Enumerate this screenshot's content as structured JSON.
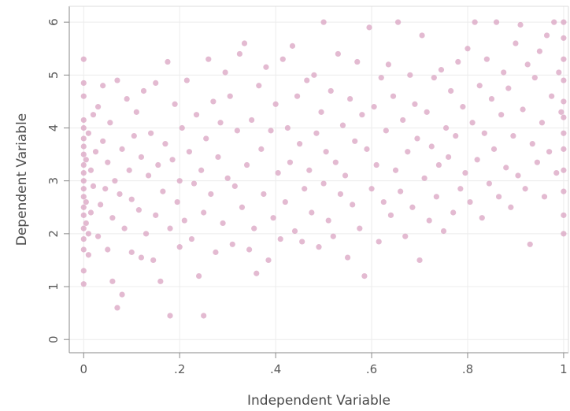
{
  "chart_data": {
    "type": "scatter",
    "title": "",
    "xlabel": "Independent Variable",
    "ylabel": "Dependent Variable",
    "xlim": [
      -0.03,
      1.01
    ],
    "ylim": [
      -0.25,
      6.3
    ],
    "x_ticks": [
      {
        "value": 0,
        "label": "0"
      },
      {
        "value": 0.2,
        "label": ".2"
      },
      {
        "value": 0.4,
        "label": ".4"
      },
      {
        "value": 0.6,
        "label": ".6"
      },
      {
        "value": 0.8,
        "label": ".8"
      },
      {
        "value": 1,
        "label": "1"
      }
    ],
    "y_ticks": [
      {
        "value": 0,
        "label": "0"
      },
      {
        "value": 1,
        "label": "1"
      },
      {
        "value": 2,
        "label": "2"
      },
      {
        "value": 3,
        "label": "3"
      },
      {
        "value": 4,
        "label": "4"
      },
      {
        "value": 5,
        "label": "5"
      },
      {
        "value": 6,
        "label": "6"
      }
    ],
    "grid": true,
    "legend": "none",
    "point_color": "#d9a3c1",
    "series": [
      {
        "points": [
          [
            0.0,
            1.05
          ],
          [
            0.0,
            1.3
          ],
          [
            0.0,
            1.7
          ],
          [
            0.0,
            1.9
          ],
          [
            0.0,
            2.1
          ],
          [
            0.0,
            2.35
          ],
          [
            0.0,
            2.5
          ],
          [
            0.0,
            2.7
          ],
          [
            0.0,
            2.85
          ],
          [
            0.0,
            3.0
          ],
          [
            0.0,
            3.15
          ],
          [
            0.0,
            3.3
          ],
          [
            0.0,
            3.5
          ],
          [
            0.0,
            3.65
          ],
          [
            0.0,
            3.8
          ],
          [
            0.0,
            4.0
          ],
          [
            0.0,
            4.15
          ],
          [
            0.0,
            4.6
          ],
          [
            0.0,
            4.85
          ],
          [
            0.0,
            5.3
          ],
          [
            0.005,
            2.2
          ],
          [
            0.005,
            2.6
          ],
          [
            0.005,
            3.4
          ],
          [
            0.01,
            1.6
          ],
          [
            0.01,
            2.0
          ],
          [
            0.01,
            3.9
          ],
          [
            0.015,
            2.4
          ],
          [
            0.015,
            3.2
          ],
          [
            0.02,
            4.25
          ],
          [
            0.02,
            2.9
          ],
          [
            0.025,
            3.55
          ],
          [
            0.03,
            4.4
          ],
          [
            0.03,
            1.95
          ],
          [
            0.035,
            2.55
          ],
          [
            0.04,
            3.75
          ],
          [
            0.04,
            4.8
          ],
          [
            0.045,
            2.85
          ],
          [
            0.05,
            3.35
          ],
          [
            0.05,
            1.7
          ],
          [
            0.055,
            4.1
          ],
          [
            0.06,
            1.1
          ],
          [
            0.06,
            2.3
          ],
          [
            0.065,
            3.0
          ],
          [
            0.07,
            4.9
          ],
          [
            0.07,
            0.6
          ],
          [
            0.075,
            2.75
          ],
          [
            0.08,
            3.6
          ],
          [
            0.08,
            0.85
          ],
          [
            0.085,
            2.1
          ],
          [
            0.09,
            4.55
          ],
          [
            0.095,
            3.2
          ],
          [
            0.1,
            1.65
          ],
          [
            0.1,
            2.65
          ],
          [
            0.105,
            3.85
          ],
          [
            0.11,
            4.3
          ],
          [
            0.115,
            2.45
          ],
          [
            0.12,
            1.55
          ],
          [
            0.12,
            3.45
          ],
          [
            0.125,
            4.7
          ],
          [
            0.13,
            2.0
          ],
          [
            0.135,
            3.1
          ],
          [
            0.14,
            3.9
          ],
          [
            0.145,
            1.5
          ],
          [
            0.15,
            2.35
          ],
          [
            0.15,
            4.85
          ],
          [
            0.155,
            3.3
          ],
          [
            0.16,
            1.1
          ],
          [
            0.165,
            2.8
          ],
          [
            0.17,
            3.7
          ],
          [
            0.175,
            5.25
          ],
          [
            0.18,
            0.45
          ],
          [
            0.18,
            2.1
          ],
          [
            0.185,
            3.4
          ],
          [
            0.19,
            4.45
          ],
          [
            0.195,
            2.6
          ],
          [
            0.2,
            1.75
          ],
          [
            0.2,
            3.0
          ],
          [
            0.205,
            4.0
          ],
          [
            0.21,
            2.25
          ],
          [
            0.215,
            4.9
          ],
          [
            0.22,
            3.55
          ],
          [
            0.225,
            1.9
          ],
          [
            0.23,
            2.95
          ],
          [
            0.235,
            4.25
          ],
          [
            0.24,
            1.2
          ],
          [
            0.245,
            3.2
          ],
          [
            0.25,
            0.45
          ],
          [
            0.25,
            2.4
          ],
          [
            0.255,
            3.8
          ],
          [
            0.26,
            5.3
          ],
          [
            0.265,
            2.75
          ],
          [
            0.27,
            4.5
          ],
          [
            0.275,
            1.65
          ],
          [
            0.28,
            3.45
          ],
          [
            0.285,
            4.1
          ],
          [
            0.29,
            2.2
          ],
          [
            0.295,
            5.05
          ],
          [
            0.3,
            3.05
          ],
          [
            0.305,
            4.6
          ],
          [
            0.31,
            1.8
          ],
          [
            0.315,
            2.9
          ],
          [
            0.32,
            3.95
          ],
          [
            0.325,
            5.4
          ],
          [
            0.33,
            2.5
          ],
          [
            0.335,
            5.6
          ],
          [
            0.34,
            3.3
          ],
          [
            0.345,
            1.7
          ],
          [
            0.35,
            4.15
          ],
          [
            0.355,
            2.1
          ],
          [
            0.36,
            1.25
          ],
          [
            0.365,
            4.8
          ],
          [
            0.37,
            3.6
          ],
          [
            0.375,
            2.75
          ],
          [
            0.38,
            5.15
          ],
          [
            0.385,
            1.5
          ],
          [
            0.39,
            3.95
          ],
          [
            0.395,
            2.3
          ],
          [
            0.4,
            4.45
          ],
          [
            0.405,
            3.15
          ],
          [
            0.41,
            1.9
          ],
          [
            0.415,
            5.3
          ],
          [
            0.42,
            2.6
          ],
          [
            0.425,
            4.0
          ],
          [
            0.43,
            3.35
          ],
          [
            0.435,
            5.55
          ],
          [
            0.44,
            2.05
          ],
          [
            0.445,
            4.6
          ],
          [
            0.45,
            3.7
          ],
          [
            0.455,
            1.85
          ],
          [
            0.46,
            2.85
          ],
          [
            0.465,
            4.9
          ],
          [
            0.47,
            3.2
          ],
          [
            0.475,
            2.4
          ],
          [
            0.48,
            5.0
          ],
          [
            0.485,
            3.9
          ],
          [
            0.49,
            1.75
          ],
          [
            0.495,
            4.3
          ],
          [
            0.5,
            2.95
          ],
          [
            0.5,
            6.0
          ],
          [
            0.505,
            3.55
          ],
          [
            0.51,
            2.25
          ],
          [
            0.515,
            4.7
          ],
          [
            0.52,
            1.95
          ],
          [
            0.525,
            3.35
          ],
          [
            0.53,
            5.4
          ],
          [
            0.535,
            2.75
          ],
          [
            0.54,
            4.05
          ],
          [
            0.545,
            3.1
          ],
          [
            0.55,
            1.55
          ],
          [
            0.555,
            4.55
          ],
          [
            0.56,
            2.55
          ],
          [
            0.565,
            3.75
          ],
          [
            0.57,
            5.25
          ],
          [
            0.575,
            2.1
          ],
          [
            0.58,
            4.25
          ],
          [
            0.585,
            1.2
          ],
          [
            0.59,
            3.6
          ],
          [
            0.595,
            5.9
          ],
          [
            0.6,
            2.85
          ],
          [
            0.605,
            4.4
          ],
          [
            0.61,
            3.3
          ],
          [
            0.615,
            1.85
          ],
          [
            0.62,
            4.95
          ],
          [
            0.625,
            2.6
          ],
          [
            0.63,
            3.95
          ],
          [
            0.635,
            5.2
          ],
          [
            0.64,
            2.35
          ],
          [
            0.645,
            4.6
          ],
          [
            0.65,
            3.2
          ],
          [
            0.655,
            6.0
          ],
          [
            0.66,
            2.8
          ],
          [
            0.665,
            4.15
          ],
          [
            0.67,
            1.95
          ],
          [
            0.675,
            3.55
          ],
          [
            0.68,
            5.0
          ],
          [
            0.685,
            2.5
          ],
          [
            0.69,
            4.45
          ],
          [
            0.695,
            3.8
          ],
          [
            0.7,
            1.5
          ],
          [
            0.705,
            5.75
          ],
          [
            0.71,
            3.05
          ],
          [
            0.715,
            4.3
          ],
          [
            0.72,
            2.25
          ],
          [
            0.725,
            3.65
          ],
          [
            0.73,
            4.95
          ],
          [
            0.735,
            2.7
          ],
          [
            0.74,
            3.3
          ],
          [
            0.745,
            5.1
          ],
          [
            0.75,
            2.05
          ],
          [
            0.755,
            4.0
          ],
          [
            0.76,
            3.45
          ],
          [
            0.765,
            4.7
          ],
          [
            0.77,
            2.4
          ],
          [
            0.775,
            3.85
          ],
          [
            0.78,
            5.25
          ],
          [
            0.785,
            2.85
          ],
          [
            0.79,
            4.4
          ],
          [
            0.795,
            3.15
          ],
          [
            0.8,
            5.5
          ],
          [
            0.805,
            2.6
          ],
          [
            0.81,
            4.1
          ],
          [
            0.815,
            6.0
          ],
          [
            0.82,
            3.4
          ],
          [
            0.825,
            4.8
          ],
          [
            0.83,
            2.3
          ],
          [
            0.835,
            3.9
          ],
          [
            0.84,
            5.3
          ],
          [
            0.845,
            2.95
          ],
          [
            0.85,
            4.55
          ],
          [
            0.855,
            3.6
          ],
          [
            0.86,
            6.0
          ],
          [
            0.865,
            2.7
          ],
          [
            0.87,
            4.25
          ],
          [
            0.875,
            5.05
          ],
          [
            0.88,
            3.25
          ],
          [
            0.885,
            4.75
          ],
          [
            0.89,
            2.5
          ],
          [
            0.895,
            3.85
          ],
          [
            0.9,
            5.6
          ],
          [
            0.905,
            3.1
          ],
          [
            0.91,
            5.95
          ],
          [
            0.915,
            4.35
          ],
          [
            0.92,
            2.85
          ],
          [
            0.925,
            5.2
          ],
          [
            0.93,
            1.8
          ],
          [
            0.935,
            3.7
          ],
          [
            0.94,
            4.95
          ],
          [
            0.945,
            3.35
          ],
          [
            0.95,
            5.45
          ],
          [
            0.955,
            4.1
          ],
          [
            0.96,
            2.7
          ],
          [
            0.965,
            5.75
          ],
          [
            0.97,
            3.55
          ],
          [
            0.975,
            4.6
          ],
          [
            0.98,
            6.0
          ],
          [
            0.985,
            3.15
          ],
          [
            0.99,
            5.05
          ],
          [
            0.995,
            4.3
          ],
          [
            1.0,
            2.0
          ],
          [
            1.0,
            2.35
          ],
          [
            1.0,
            2.8
          ],
          [
            1.0,
            3.2
          ],
          [
            1.0,
            3.6
          ],
          [
            1.0,
            3.9
          ],
          [
            1.0,
            4.2
          ],
          [
            1.0,
            4.5
          ],
          [
            1.0,
            4.9
          ],
          [
            1.0,
            5.3
          ],
          [
            1.0,
            5.7
          ],
          [
            1.0,
            6.0
          ]
        ]
      }
    ]
  }
}
